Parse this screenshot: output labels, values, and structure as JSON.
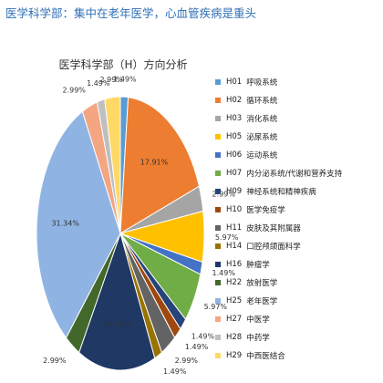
{
  "headline": "医学科学部：集中在老年医学，心血管疾病是重头",
  "chart_data": {
    "type": "pie",
    "title": "医学科学部（H）方向分析",
    "legend_position": "right",
    "slices": [
      {
        "code": "H01",
        "label": "呼吸系统",
        "value": 1.49,
        "color": "#5B9BD5"
      },
      {
        "code": "H02",
        "label": "循环系统",
        "value": 17.91,
        "color": "#ED7D31"
      },
      {
        "code": "H03",
        "label": "消化系统",
        "value": 2.99,
        "color": "#A5A5A5"
      },
      {
        "code": "H05",
        "label": "泌尿系统",
        "value": 5.97,
        "color": "#FFC000"
      },
      {
        "code": "H06",
        "label": "运动系统",
        "value": 1.49,
        "color": "#4472C4"
      },
      {
        "code": "H07",
        "label": "内分泌系统/代谢和营养支持",
        "value": 5.97,
        "color": "#70AD47"
      },
      {
        "code": "H09",
        "label": "神经系统和精神疾病",
        "value": 1.49,
        "color": "#264478"
      },
      {
        "code": "H10",
        "label": "医学免疫学",
        "value": 1.49,
        "color": "#9E480E"
      },
      {
        "code": "H11",
        "label": "皮肤及其附属器",
        "value": 2.99,
        "color": "#636363"
      },
      {
        "code": "H14",
        "label": "口腔颅颌面科学",
        "value": 1.49,
        "color": "#997300"
      },
      {
        "code": "H16",
        "label": "肿瘤学",
        "value": 14.93,
        "color": "#1F3864"
      },
      {
        "code": "H22",
        "label": "放射医学",
        "value": 2.99,
        "color": "#43682B"
      },
      {
        "code": "H25",
        "label": "老年医学",
        "value": 31.34,
        "color": "#8FB4E3"
      },
      {
        "code": "H27",
        "label": "中医学",
        "value": 2.99,
        "color": "#F4A582"
      },
      {
        "code": "H28",
        "label": "中药学",
        "value": 1.49,
        "color": "#BFBFBF"
      },
      {
        "code": "H29",
        "label": "中西医结合",
        "value": 2.99,
        "color": "#FFD966"
      }
    ]
  }
}
